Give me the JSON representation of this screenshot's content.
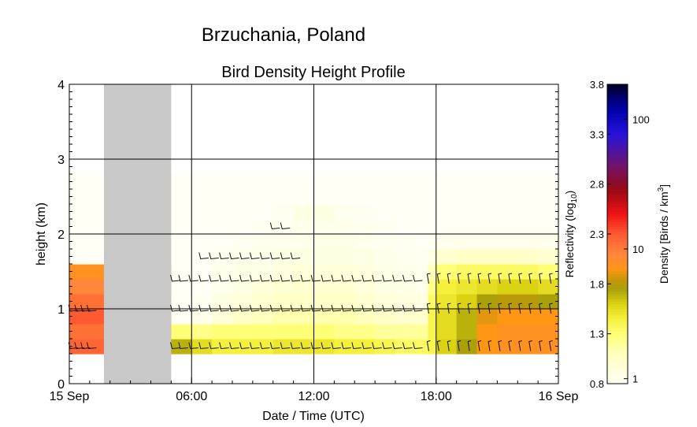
{
  "chart_data": {
    "type": "heatmap",
    "title": "Brzuchania, Poland",
    "subtitle": "Bird Density Height Profile",
    "xlabel": "Date / Time (UTC)",
    "ylabel": "height (km)",
    "xlim": [
      "15 Sep 00:00",
      "16 Sep 00:00"
    ],
    "ylim": [
      0,
      4
    ],
    "x_ticks": [
      "15 Sep",
      "06:00",
      "12:00",
      "18:00",
      "16 Sep"
    ],
    "x_tick_hours": [
      0,
      6,
      12,
      18,
      24
    ],
    "y_ticks": [
      "0",
      "1",
      "2",
      "3",
      "4"
    ],
    "y_tick_values": [
      0,
      1,
      2,
      3,
      4
    ],
    "grid": true,
    "colorbar": {
      "left_label": "Reflectivity (log",
      "left_label_sub": "10",
      "left_label_end": ")",
      "right_label": "Density [Birds / km",
      "right_label_sup": "3",
      "right_label_end": "]",
      "left_ticks": [
        "0.8",
        "1.3",
        "1.8",
        "2.3",
        "2.8",
        "3.3",
        "3.8"
      ],
      "left_tick_values": [
        0.8,
        1.3,
        1.8,
        2.3,
        2.8,
        3.3,
        3.8
      ],
      "right_ticks": [
        "1",
        "10",
        "100"
      ],
      "right_tick_density": [
        1,
        10,
        100
      ],
      "range": [
        0.8,
        3.8
      ]
    },
    "no_data_interval_hours": [
      1.7,
      5.0
    ],
    "heights_km": [
      0.4,
      0.6,
      0.8,
      1.0,
      1.2,
      1.4,
      1.6,
      1.8,
      2.0,
      2.2,
      2.4,
      2.6
    ],
    "time_hours": [
      0,
      1,
      5.0,
      6,
      7,
      8,
      9,
      10,
      11,
      12,
      13,
      14,
      15,
      16,
      17,
      17.6,
      18,
      19,
      20,
      21,
      22,
      23,
      24
    ],
    "reflectivity_log10": [
      [
        2.25,
        2.2,
        2.3,
        2.2,
        2.1,
        2.0,
        0.8,
        0.8,
        0.8,
        0.8,
        0.8,
        0.8
      ],
      [
        2.25,
        2.2,
        2.3,
        2.2,
        2.1,
        2.0,
        0.8,
        0.8,
        0.8,
        0.8,
        0.8,
        0.8
      ],
      [
        1.7,
        1.3,
        0.8,
        0.8,
        0.8,
        0.8,
        0.8,
        0.8,
        0.8,
        0.8,
        0.8,
        0.8
      ],
      [
        1.55,
        1.25,
        0.85,
        0.82,
        0.8,
        0.8,
        0.8,
        0.8,
        0.8,
        0.8,
        0.8,
        0.8
      ],
      [
        1.45,
        1.3,
        0.95,
        0.9,
        0.85,
        0.85,
        0.82,
        0.8,
        0.8,
        0.8,
        0.8,
        0.8
      ],
      [
        1.45,
        1.3,
        1.05,
        0.95,
        0.9,
        0.88,
        0.85,
        0.82,
        0.8,
        0.8,
        0.8,
        0.8
      ],
      [
        1.45,
        1.3,
        1.1,
        1.0,
        0.95,
        0.9,
        0.86,
        0.84,
        0.82,
        0.8,
        0.8,
        0.8
      ],
      [
        1.5,
        1.3,
        1.15,
        1.05,
        0.98,
        0.92,
        0.88,
        0.85,
        0.83,
        0.82,
        0.8,
        0.8
      ],
      [
        1.5,
        1.3,
        1.15,
        1.05,
        1.0,
        0.95,
        0.9,
        0.86,
        0.85,
        0.9,
        0.8,
        0.8
      ],
      [
        1.5,
        1.3,
        1.15,
        1.05,
        1.0,
        0.95,
        0.9,
        0.87,
        0.85,
        0.9,
        0.8,
        0.8
      ],
      [
        1.45,
        1.25,
        1.15,
        1.05,
        1.0,
        0.95,
        0.9,
        0.87,
        0.85,
        0.83,
        0.8,
        0.8
      ],
      [
        1.45,
        1.25,
        1.1,
        1.0,
        0.95,
        0.92,
        0.88,
        0.85,
        0.83,
        0.82,
        0.8,
        0.8
      ],
      [
        1.4,
        1.2,
        1.05,
        0.95,
        0.9,
        0.88,
        0.85,
        0.83,
        0.82,
        0.8,
        0.8,
        0.8
      ],
      [
        1.35,
        1.2,
        1.0,
        0.92,
        0.88,
        0.85,
        0.83,
        0.82,
        0.8,
        0.8,
        0.8,
        0.8
      ],
      [
        1.35,
        1.2,
        1.0,
        0.9,
        0.85,
        0.83,
        0.82,
        0.8,
        0.8,
        0.8,
        0.8,
        0.8
      ],
      [
        1.4,
        1.4,
        1.4,
        1.35,
        1.25,
        1.1,
        0.9,
        0.82,
        0.8,
        0.8,
        0.8,
        0.8
      ],
      [
        1.6,
        1.55,
        1.55,
        1.5,
        1.45,
        1.3,
        1.0,
        0.85,
        0.8,
        0.8,
        0.8,
        0.8
      ],
      [
        1.75,
        1.7,
        1.7,
        1.6,
        1.5,
        1.35,
        1.05,
        0.85,
        0.8,
        0.8,
        0.8,
        0.8
      ],
      [
        1.95,
        1.95,
        1.9,
        1.75,
        1.55,
        1.35,
        1.05,
        0.85,
        0.8,
        0.8,
        0.8,
        0.8
      ],
      [
        2.0,
        2.0,
        1.95,
        1.8,
        1.6,
        1.35,
        1.05,
        0.85,
        0.8,
        0.8,
        0.8,
        0.8
      ],
      [
        2.0,
        2.0,
        1.95,
        1.8,
        1.6,
        1.35,
        1.05,
        0.85,
        0.8,
        0.8,
        0.8,
        0.8
      ],
      [
        2.0,
        2.0,
        1.95,
        1.75,
        1.55,
        1.3,
        1.0,
        0.85,
        0.8,
        0.8,
        0.8,
        0.8
      ],
      [
        2.0,
        2.0,
        1.95,
        1.75,
        1.55,
        1.3,
        1.0,
        0.85,
        0.8,
        0.8,
        0.8,
        0.8
      ]
    ],
    "wind_barb_times_hours": [
      0.2,
      0.5,
      0.8,
      1.1,
      5.2,
      5.6,
      6.1,
      6.6,
      7.1,
      7.6,
      8.1,
      8.6,
      9.1,
      9.6,
      10.1,
      10.6,
      11.1,
      11.6,
      12.1,
      12.6,
      13.1,
      13.6,
      14.1,
      14.6,
      15.1,
      15.6,
      16.1,
      16.6,
      17.1,
      17.6,
      18.1,
      18.6,
      19.1,
      19.6,
      20.1,
      20.6,
      21.1,
      21.6,
      22.1,
      22.6,
      23.1,
      23.6
    ],
    "wind_barb_heights_km": [
      0.5,
      1.0,
      1.4,
      1.7,
      2.1
    ]
  }
}
